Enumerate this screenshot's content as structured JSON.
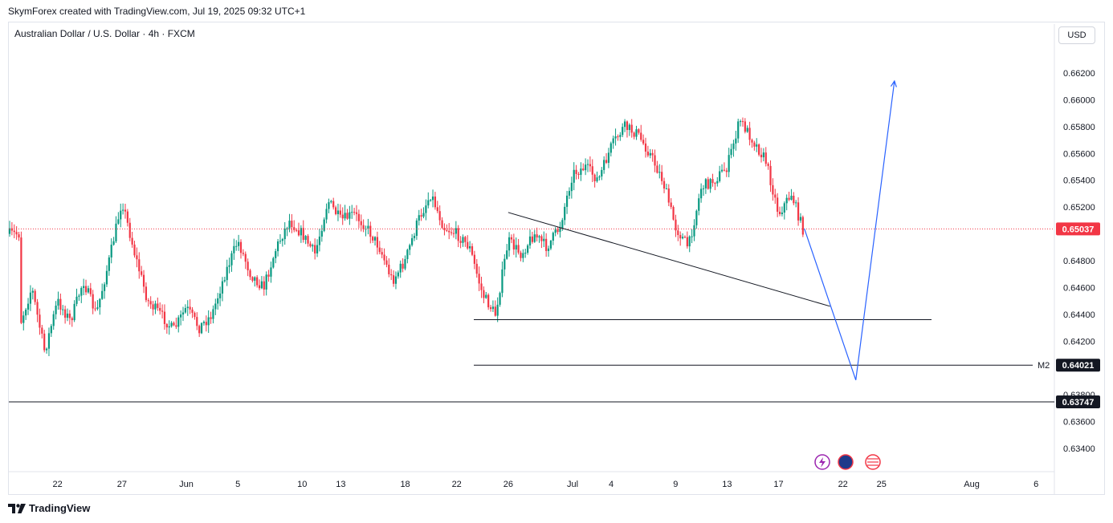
{
  "header": {
    "credit": "SkymForex created with TradingView.com, Jul 19, 2025 09:32 UTC+1",
    "symbol": "Australian Dollar / U.S. Dollar · 4h · FXCM",
    "currency": "USD",
    "footer_brand": "TradingView"
  },
  "chart_data": {
    "type": "candlestick",
    "title": "Australian Dollar / U.S. Dollar · 4h · FXCM",
    "ylim": [
      0.632,
      0.665
    ],
    "y_ticks": [
      0.634,
      0.636,
      0.638,
      0.642,
      0.644,
      0.646,
      0.648,
      0.652,
      0.654,
      0.656,
      0.658,
      0.66,
      0.662
    ],
    "y_tick_labels": [
      "0.63400",
      "0.63600",
      "0.63800",
      "0.64200",
      "0.64400",
      "0.64600",
      "0.64800",
      "0.65200",
      "0.65400",
      "0.65600",
      "0.65800",
      "0.66000",
      "0.66200"
    ],
    "x_ticks": [
      "22",
      "27",
      "Jun",
      "5",
      "10",
      "13",
      "18",
      "22",
      "26",
      "Jul",
      "4",
      "9",
      "13",
      "17",
      "22",
      "25",
      "Aug",
      "6"
    ],
    "current_price": {
      "label": "0.65037",
      "value": 0.65037,
      "color": "#f23645"
    },
    "levels": [
      {
        "name": "M2",
        "label": "0.64021",
        "value": 0.64021
      },
      {
        "name": "",
        "label": "0.63747",
        "value": 0.63747
      },
      {
        "name": "",
        "label": "",
        "value": 0.6436
      }
    ],
    "trendline": {
      "from": [
        "Jun 26",
        0.6516
      ],
      "to": [
        "Jul 21",
        0.6446
      ]
    },
    "projection": [
      [
        "Jul 19",
        0.6504
      ],
      [
        "Jul 23",
        0.6391
      ],
      [
        "Jul 26",
        0.6614
      ]
    ],
    "price_path": [
      [
        "May 19",
        0.643
      ],
      [
        "May 20",
        0.646
      ],
      [
        "May 21",
        0.6412
      ],
      [
        "May 22",
        0.645
      ],
      [
        "May 23",
        0.6435
      ],
      [
        "May 24",
        0.6465
      ],
      [
        "May 25",
        0.644
      ],
      [
        "May 26",
        0.648
      ],
      [
        "May 27",
        0.6525
      ],
      [
        "May 28",
        0.6485
      ],
      [
        "May 29",
        0.645
      ],
      [
        "May 30",
        0.644
      ],
      [
        "May 31",
        0.6428
      ],
      [
        "Jun 1",
        0.6445
      ],
      [
        "Jun 2",
        0.643
      ],
      [
        "Jun 3",
        0.644
      ],
      [
        "Jun 4",
        0.647
      ],
      [
        "Jun 5",
        0.6495
      ],
      [
        "Jun 6",
        0.647
      ],
      [
        "Jun 7",
        0.646
      ],
      [
        "Jun 8",
        0.649
      ],
      [
        "Jun 9",
        0.651
      ],
      [
        "Jun 10",
        0.65
      ],
      [
        "Jun 11",
        0.6485
      ],
      [
        "Jun 12",
        0.6525
      ],
      [
        "Jun 13",
        0.651
      ],
      [
        "Jun 14",
        0.6515
      ],
      [
        "Jun 15",
        0.6505
      ],
      [
        "Jun 16",
        0.649
      ],
      [
        "Jun 17",
        0.6465
      ],
      [
        "Jun 18",
        0.648
      ],
      [
        "Jun 19",
        0.651
      ],
      [
        "Jun 20",
        0.653
      ],
      [
        "Jun 21",
        0.6505
      ],
      [
        "Jun 22",
        0.65
      ],
      [
        "Jun 23",
        0.649
      ],
      [
        "Jun 24",
        0.6455
      ],
      [
        "Jun 25",
        0.644
      ],
      [
        "Jun 26",
        0.6495
      ],
      [
        "Jun 27",
        0.6485
      ],
      [
        "Jun 28",
        0.65
      ],
      [
        "Jun 29",
        0.649
      ],
      [
        "Jun 30",
        0.6505
      ],
      [
        "Jul 1",
        0.6545
      ],
      [
        "Jul 2",
        0.655
      ],
      [
        "Jul 3",
        0.654
      ],
      [
        "Jul 4",
        0.6565
      ],
      [
        "Jul 5",
        0.658
      ],
      [
        "Jul 6",
        0.6575
      ],
      [
        "Jul 7",
        0.656
      ],
      [
        "Jul 8",
        0.654
      ],
      [
        "Jul 9",
        0.6505
      ],
      [
        "Jul 10",
        0.649
      ],
      [
        "Jul 11",
        0.6535
      ],
      [
        "Jul 12",
        0.654
      ],
      [
        "Jul 13",
        0.655
      ],
      [
        "Jul 14",
        0.6585
      ],
      [
        "Jul 15",
        0.657
      ],
      [
        "Jul 16",
        0.6555
      ],
      [
        "Jul 17",
        0.6515
      ],
      [
        "Jul 18",
        0.653
      ],
      [
        "Jul 19",
        0.65
      ]
    ],
    "bull_color": "#089981",
    "bear_color": "#f23645"
  }
}
